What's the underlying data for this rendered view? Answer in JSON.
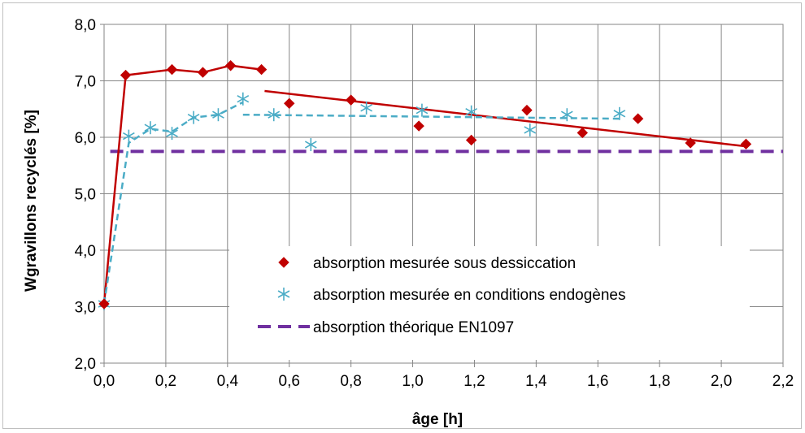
{
  "chart_data": {
    "type": "scatter",
    "xlabel": "âge [h]",
    "ylabel": "Wgravillons recyclés [%]",
    "xlim": [
      0,
      2.2
    ],
    "ylim": [
      2.0,
      8.0
    ],
    "x_ticks": [
      "0,0",
      "0,2",
      "0,4",
      "0,6",
      "0,8",
      "1,0",
      "1,2",
      "1,4",
      "1,6",
      "1,8",
      "2,0",
      "2,2"
    ],
    "y_ticks": [
      "2,0",
      "3,0",
      "4,0",
      "5,0",
      "6,0",
      "7,0",
      "8,0"
    ],
    "grid": true,
    "legend_position": "center-right",
    "series": [
      {
        "name": "absorption mesurée sous dessiccation",
        "marker": "diamond",
        "color": "#c00000",
        "points": [
          [
            0.0,
            3.05
          ],
          [
            0.07,
            7.1
          ],
          [
            0.22,
            7.2
          ],
          [
            0.32,
            7.15
          ],
          [
            0.41,
            7.27
          ],
          [
            0.51,
            7.2
          ],
          [
            0.6,
            6.6
          ],
          [
            0.8,
            6.66
          ],
          [
            1.02,
            6.2
          ],
          [
            1.19,
            5.95
          ],
          [
            1.37,
            6.48
          ],
          [
            1.55,
            6.08
          ],
          [
            1.73,
            6.33
          ],
          [
            1.9,
            5.9
          ],
          [
            2.08,
            5.88
          ]
        ]
      },
      {
        "name": "absorption mesurée en conditions endogènes",
        "marker": "asterisk",
        "color": "#4bacc6",
        "points": [
          [
            0.0,
            3.05
          ],
          [
            0.08,
            6.02
          ],
          [
            0.15,
            6.17
          ],
          [
            0.22,
            6.07
          ],
          [
            0.29,
            6.35
          ],
          [
            0.37,
            6.4
          ],
          [
            0.45,
            6.68
          ],
          [
            0.55,
            6.4
          ],
          [
            0.67,
            5.87
          ],
          [
            0.85,
            6.52
          ],
          [
            1.03,
            6.48
          ],
          [
            1.19,
            6.45
          ],
          [
            1.38,
            6.13
          ],
          [
            1.5,
            6.4
          ],
          [
            1.67,
            6.42
          ]
        ]
      },
      {
        "name": "absorption théorique EN1097",
        "marker": "none",
        "color": "#7030a0",
        "style": "dashed",
        "value": 5.75
      }
    ],
    "fit_lines": [
      {
        "series": "absorption mesurée sous dessiccation",
        "color": "#c00000",
        "style": "solid",
        "points": [
          [
            0.0,
            3.05
          ],
          [
            0.07,
            7.1
          ],
          [
            0.22,
            7.2
          ],
          [
            0.32,
            7.15
          ],
          [
            0.41,
            7.27
          ],
          [
            0.51,
            7.2
          ]
        ]
      },
      {
        "series": "absorption mesurée sous dessiccation",
        "color": "#c00000",
        "style": "solid",
        "points": [
          [
            0.52,
            6.82
          ],
          [
            2.08,
            5.84
          ]
        ]
      },
      {
        "series": "absorption mesurée en conditions endogènes",
        "color": "#4bacc6",
        "style": "dashed",
        "points": [
          [
            0.0,
            3.05
          ],
          [
            0.08,
            5.9
          ],
          [
            0.15,
            6.15
          ],
          [
            0.22,
            6.1
          ],
          [
            0.29,
            6.35
          ],
          [
            0.37,
            6.4
          ],
          [
            0.45,
            6.62
          ]
        ]
      },
      {
        "series": "absorption mesurée en conditions endogènes",
        "color": "#4bacc6",
        "style": "dashed",
        "points": [
          [
            0.45,
            6.4
          ],
          [
            1.67,
            6.33
          ]
        ]
      }
    ]
  }
}
